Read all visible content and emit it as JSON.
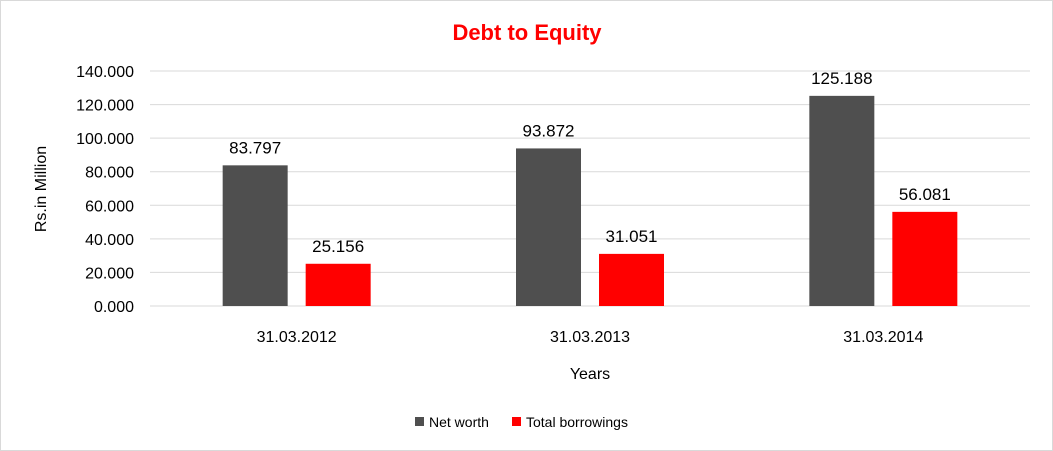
{
  "chart_data": {
    "type": "bar",
    "title": "Debt to Equity",
    "title_color": "#ff0000",
    "xlabel": "Years",
    "ylabel": "Rs.in Million",
    "categories": [
      "31.03.2012",
      "31.03.2013",
      "31.03.2014"
    ],
    "series": [
      {
        "name": "Net worth",
        "color": "#4f4f4f",
        "values": [
          83.797,
          93.872,
          125.188
        ],
        "labels": [
          "83.797",
          "93.872",
          "125.188"
        ]
      },
      {
        "name": "Total borrowings",
        "color": "#ff0000",
        "values": [
          25.156,
          31.051,
          56.081
        ],
        "labels": [
          "25.156",
          "31.051",
          "56.081"
        ]
      }
    ],
    "ylim": [
      0,
      140
    ],
    "yticks": [
      0,
      20,
      40,
      60,
      80,
      100,
      120,
      140
    ],
    "ytick_labels": [
      "0.000",
      "20.000",
      "40.000",
      "60.000",
      "80.000",
      "100.000",
      "120.000",
      "140.000"
    ],
    "grid": true,
    "gridline_color": "#d9d9d9",
    "legend_position": "bottom"
  }
}
